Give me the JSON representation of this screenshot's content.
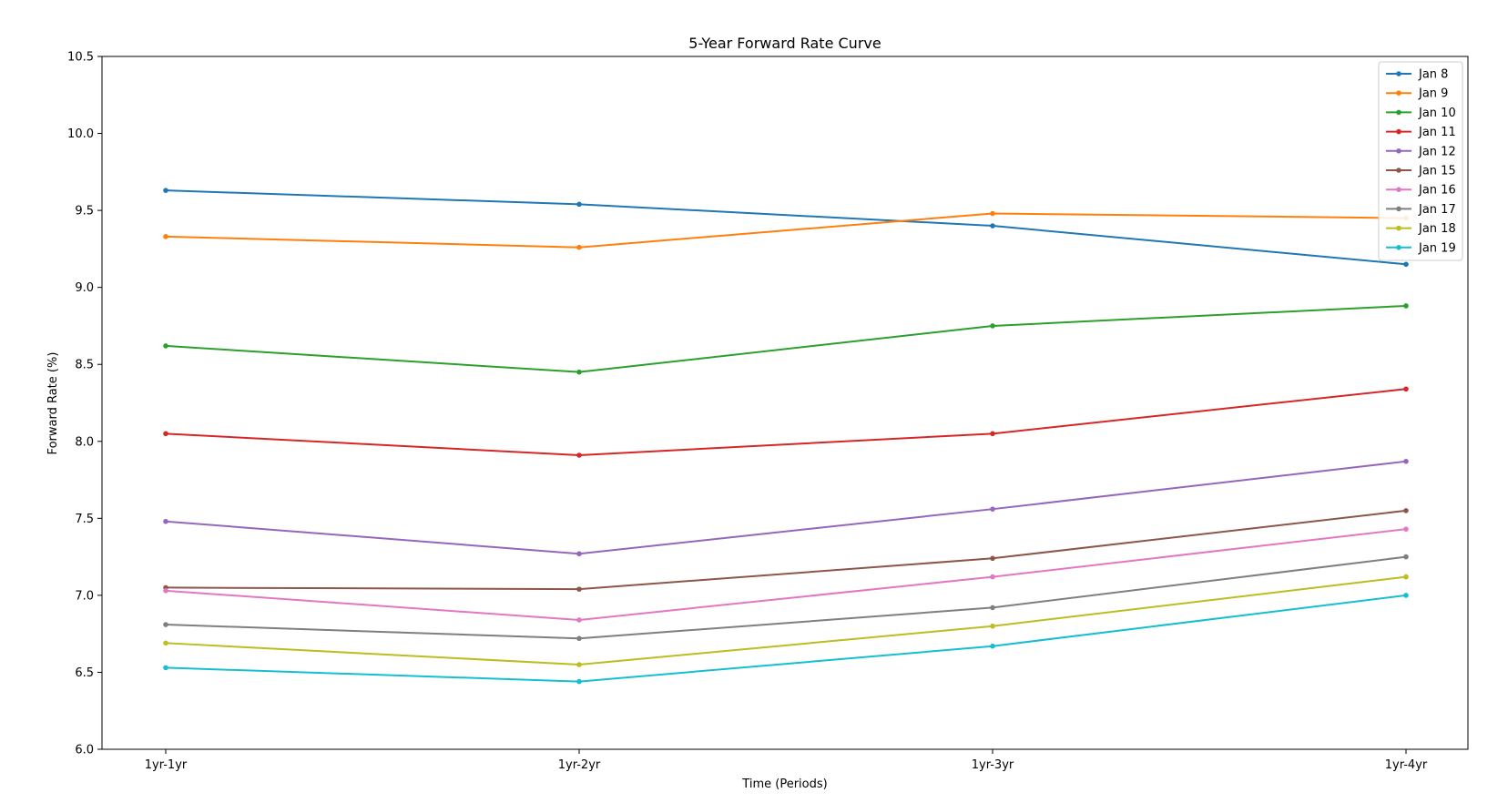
{
  "chart_data": {
    "type": "line",
    "title": "5-Year Forward Rate Curve",
    "xlabel": "Time (Periods)",
    "ylabel": "Forward Rate (%)",
    "categories": [
      "1yr-1yr",
      "1yr-2yr",
      "1yr-3yr",
      "1yr-4yr"
    ],
    "ylim": [
      6.0,
      10.5
    ],
    "yticks": [
      "6.0",
      "6.5",
      "7.0",
      "7.5",
      "8.0",
      "8.5",
      "9.0",
      "9.5",
      "10.0",
      "10.5"
    ],
    "grid": false,
    "legend_position": "top-right",
    "series": [
      {
        "name": "Jan 8",
        "color": "#1f77b4",
        "values": [
          9.63,
          9.54,
          9.4,
          9.15
        ]
      },
      {
        "name": "Jan 9",
        "color": "#ff7f0e",
        "values": [
          9.33,
          9.26,
          9.48,
          9.45
        ]
      },
      {
        "name": "Jan 10",
        "color": "#2ca02c",
        "values": [
          8.62,
          8.45,
          8.75,
          8.88
        ]
      },
      {
        "name": "Jan 11",
        "color": "#d62728",
        "values": [
          8.05,
          7.91,
          8.05,
          8.34
        ]
      },
      {
        "name": "Jan 12",
        "color": "#9467bd",
        "values": [
          7.48,
          7.27,
          7.56,
          7.87
        ]
      },
      {
        "name": "Jan 15",
        "color": "#8c564b",
        "values": [
          7.05,
          7.04,
          7.24,
          7.55
        ]
      },
      {
        "name": "Jan 16",
        "color": "#e377c2",
        "values": [
          7.03,
          6.84,
          7.12,
          7.43
        ]
      },
      {
        "name": "Jan 17",
        "color": "#7f7f7f",
        "values": [
          6.81,
          6.72,
          6.92,
          7.25
        ]
      },
      {
        "name": "Jan 18",
        "color": "#bcbd22",
        "values": [
          6.69,
          6.55,
          6.8,
          7.12
        ]
      },
      {
        "name": "Jan 19",
        "color": "#17becf",
        "values": [
          6.53,
          6.44,
          6.67,
          7.0
        ]
      }
    ]
  }
}
